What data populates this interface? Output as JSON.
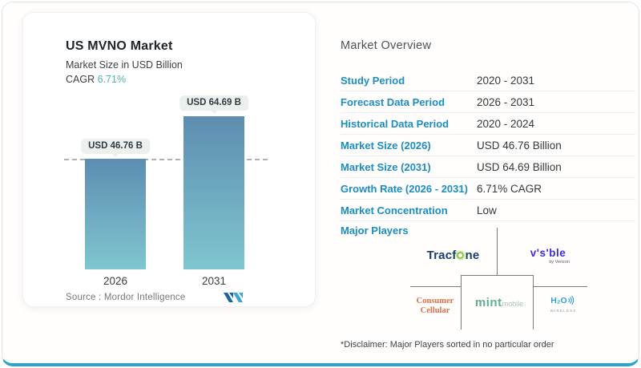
{
  "colors": {
    "accent_blue": "#1b8dc4",
    "teal": "#4cb5ab",
    "bar_gradient_top": "#5d8db1",
    "bar_gradient_bottom": "#80c6cf",
    "bottom_strip": "#2aa4cf"
  },
  "chart_card": {
    "title": "US MVNO Market",
    "subtitle": "Market Size in USD Billion",
    "cagr_label": "CAGR",
    "cagr_value": "6.71%",
    "bars": [
      {
        "year": "2026",
        "label": "USD 46.76 B"
      },
      {
        "year": "2031",
        "label": "USD 64.69 B"
      }
    ],
    "source_label": "Source :",
    "source_name": "Mordor Intelligence"
  },
  "chart_data": {
    "type": "bar",
    "title": "US MVNO Market",
    "subtitle": "Market Size in USD Billion",
    "categories": [
      "2026",
      "2031"
    ],
    "values": [
      46.76,
      64.69
    ],
    "unit": "USD Billion",
    "bar_labels": [
      "USD 46.76 B",
      "USD 64.69 B"
    ],
    "cagr_percent": 6.71,
    "reference_line_value": 46.76,
    "grid": false,
    "legend": false
  },
  "overview": {
    "title": "Market Overview",
    "rows": [
      {
        "label": "Study Period",
        "value": "2020 - 2031"
      },
      {
        "label": "Forecast Data Period",
        "value": "2026 - 2031"
      },
      {
        "label": "Historical Data Period",
        "value": "2020 - 2024"
      },
      {
        "label": "Market Size (2026)",
        "value": "USD 46.76 Billion"
      },
      {
        "label": "Market Size (2031)",
        "value": "USD 64.69 Billion"
      },
      {
        "label": "Growth Rate (2026 - 2031)",
        "value": "6.71% CAGR"
      },
      {
        "label": "Market Concentration",
        "value": "Low"
      }
    ],
    "major_players_label": "Major Players",
    "players": {
      "tracfone": {
        "name": "Tracfone",
        "pre": "Tracf",
        "post": "ne"
      },
      "visible": {
        "name": "Visible by Verizon",
        "text": "v's'ble",
        "sub": "by Verizon"
      },
      "consumer_cellular": {
        "name": "Consumer Cellular",
        "line1": "Consumer",
        "line2": "Cellular"
      },
      "mint_mobile": {
        "name": "Mint Mobile",
        "main": "mint",
        "sub": "mobile"
      },
      "h2o_wireless": {
        "name": "H2O Wireless",
        "main": "H₂O",
        "sub": "WIRELESS"
      }
    },
    "disclaimer": "*Disclaimer: Major Players sorted in no particular order"
  }
}
